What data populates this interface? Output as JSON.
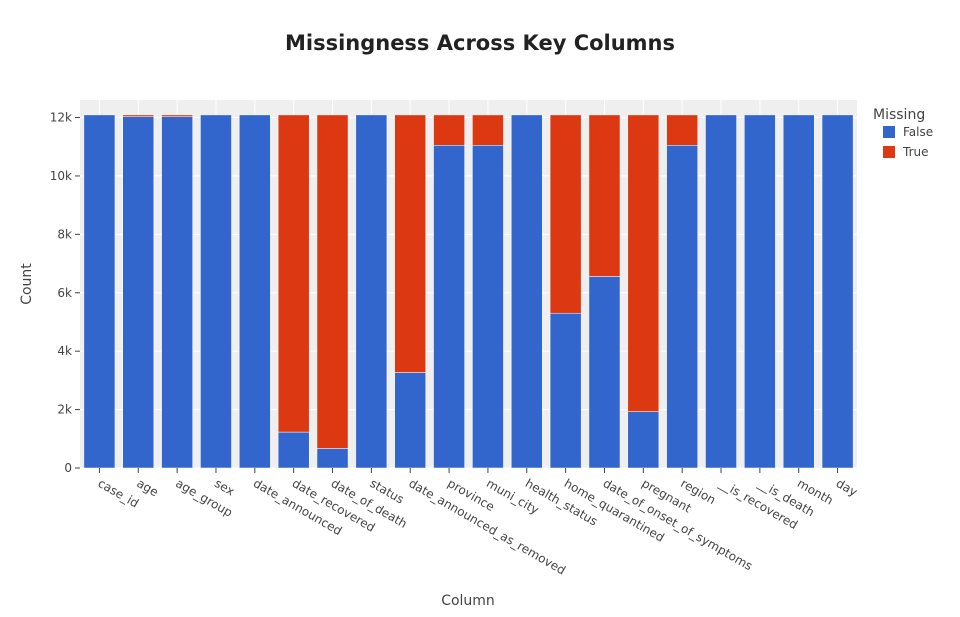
{
  "chart_data": {
    "type": "bar",
    "stacked": true,
    "title": "Missingness Across Key Columns",
    "xlabel": "Column",
    "ylabel": "Count",
    "ylim": [
      0,
      12600
    ],
    "y_ticks": [
      0,
      2000,
      4000,
      6000,
      8000,
      10000,
      12000
    ],
    "y_tick_labels": [
      "0",
      "2k",
      "4k",
      "6k",
      "8k",
      "10k",
      "12k"
    ],
    "grid": true,
    "legend_title": "Missing",
    "legend_position": "top-right",
    "categories": [
      "case_id",
      "age",
      "age_group",
      "sex",
      "date_announced",
      "date_recovered",
      "date_of_death",
      "status",
      "date_announced_as_removed",
      "province",
      "muni_city",
      "health_status",
      "home_quarantined",
      "date_of_onset_of_symptoms",
      "pregnant",
      "region",
      "__is_recovered",
      "__is_death",
      "month",
      "day"
    ],
    "series": [
      {
        "name": "False",
        "color": "#3366cc",
        "values": [
          12090,
          12030,
          12030,
          12090,
          12090,
          1230,
          670,
          12090,
          3270,
          11050,
          11050,
          12090,
          5300,
          6560,
          1930,
          11050,
          12090,
          12090,
          12090,
          12090
        ]
      },
      {
        "name": "True",
        "color": "#dc3912",
        "values": [
          0,
          60,
          60,
          0,
          0,
          10860,
          11420,
          0,
          8820,
          1040,
          1040,
          0,
          6790,
          5530,
          10160,
          1040,
          0,
          0,
          0,
          0
        ]
      }
    ]
  }
}
